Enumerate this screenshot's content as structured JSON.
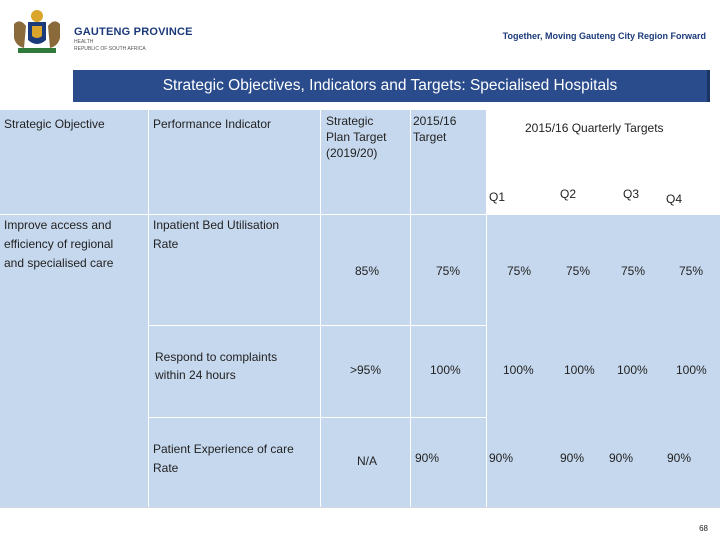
{
  "header": {
    "province_name": "GAUTENG PROVINCE",
    "department": "HEALTH",
    "country": "REPUBLIC OF SOUTH AFRICA",
    "tagline": "Together, Moving Gauteng City Region Forward"
  },
  "title": "Strategic Objectives, Indicators and Targets: Specialised Hospitals",
  "table": {
    "headers": {
      "objective": "Strategic Objective",
      "indicator": "Performance Indicator",
      "plan_target_l1": "Strategic",
      "plan_target_l2": "Plan Target",
      "plan_target_l3": "(2019/20)",
      "target_l1": "2015/16",
      "target_l2": "Target",
      "quarterly": "2015/16 Quarterly Targets",
      "q1": "Q1",
      "q2": "Q2",
      "q3": "Q3",
      "q4": "Q4"
    },
    "objective_l1": "Improve access and",
    "objective_l2": "efficiency of regional",
    "objective_l3": "and specialised care",
    "rows": [
      {
        "indicator_l1": "Inpatient Bed Utilisation",
        "indicator_l2": "Rate",
        "plan": "85%",
        "target": "75%",
        "q1": "75%",
        "q2": "75%",
        "q3": "75%",
        "q4": "75%"
      },
      {
        "indicator_l1": "Respond to complaints",
        "indicator_l2": "within 24 hours",
        "plan": ">95%",
        "target": "100%",
        "q1": "100%",
        "q2": "100%",
        "q3": "100%",
        "q4": "100%"
      },
      {
        "indicator_l1": "Patient Experience of care",
        "indicator_l2": "Rate",
        "plan": "N/A",
        "target": "90%",
        "q1": "90%",
        "q2": "90%",
        "q3": "90%",
        "q4": "90%"
      }
    ]
  },
  "page_number": "68"
}
